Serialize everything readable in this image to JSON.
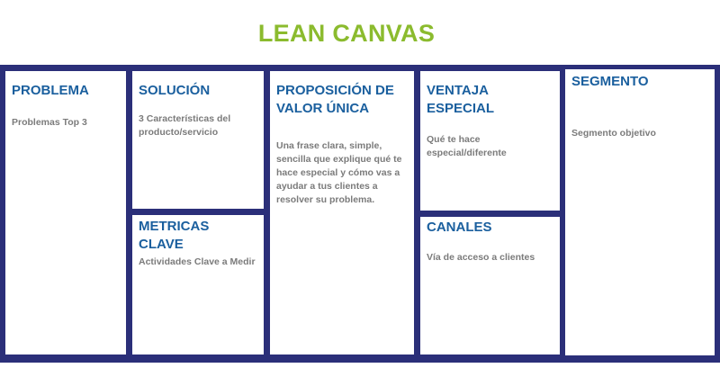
{
  "title": "LEAN CANVAS",
  "colors": {
    "title": "#8bbb2e",
    "frame": "#2b2f79",
    "heading": "#1a5f9e",
    "text": "#7b7b7b"
  },
  "blocks": {
    "problema": {
      "heading": "PROBLEMA",
      "text": "Problemas Top 3"
    },
    "solucion": {
      "heading": "SOLUCIÓN",
      "text": "3 Características del producto/servicio"
    },
    "metricas": {
      "heading": "METRICAS CLAVE",
      "text": "Actividades Clave a Medir"
    },
    "propuesta": {
      "heading": "PROPOSICIÓN DE VALOR ÚNICA",
      "text": "Una frase clara, simple, sencilla que explique qué te hace especial y cómo vas a ayudar a tus clientes a resolver su problema."
    },
    "ventaja": {
      "heading": "VENTAJA ESPECIAL",
      "text": "Qué te hace especial/diferente"
    },
    "canales": {
      "heading": "CANALES",
      "text": "Vía de acceso a clientes"
    },
    "segmento": {
      "heading": "SEGMENTO",
      "text": "Segmento objetivo"
    }
  }
}
